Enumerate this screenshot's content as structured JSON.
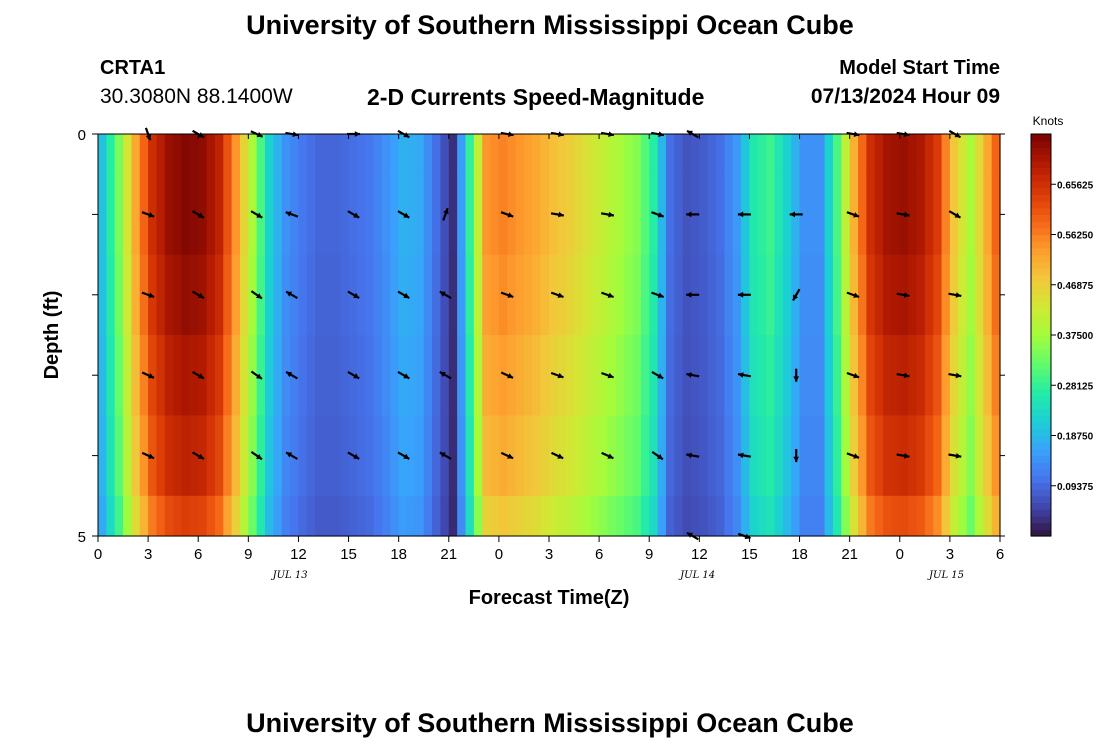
{
  "header": {
    "title": "University of Southern Mississippi Ocean Cube",
    "station_id": "CRTA1",
    "station_coords": "30.3080N  88.1400W",
    "model_start_label": "Model Start Time",
    "model_start_value": "07/13/2024 Hour 09"
  },
  "footer": {
    "title": "University of Southern Mississippi Ocean Cube"
  },
  "colors": {
    "colormap": [
      "#30123b",
      "#4145ab",
      "#4675ed",
      "#39a2fc",
      "#1bcfd4",
      "#24eca6",
      "#61fc6c",
      "#a4fc3b",
      "#d1e834",
      "#f3c63a",
      "#fe9b2d",
      "#f36315",
      "#d93806",
      "#b11901",
      "#7a0402"
    ]
  },
  "chart_data": {
    "type": "heatmap",
    "title": "2-D Currents Speed-Magnitude",
    "xlabel": "Forecast Time(Z)",
    "ylabel": "Depth (ft)",
    "xlim": [
      0,
      54
    ],
    "ylim": [
      0,
      5
    ],
    "x_tick_labels": [
      "0",
      "3",
      "6",
      "9",
      "12",
      "15",
      "18",
      "21",
      "0",
      "3",
      "6",
      "9",
      "12",
      "15",
      "18",
      "21",
      "0",
      "3",
      "6"
    ],
    "y_tick_labels": [
      "0",
      "5"
    ],
    "date_labels": [
      {
        "text": "JUL 13",
        "at_hour": 11.5
      },
      {
        "text": "JUL 14",
        "at_hour": 35.9
      },
      {
        "text": "JUL 15",
        "at_hour": 50.8
      }
    ],
    "colorbar": {
      "label": "Knots",
      "min": 0,
      "max": 0.75,
      "tick_values": [
        0.65625,
        0.5625,
        0.46875,
        0.375,
        0.28125,
        0.1875,
        0.09375
      ],
      "tick_labels": [
        "0.65625",
        "0.56250",
        "0.46875",
        "0.37500",
        "0.28125",
        "0.18750",
        "0.09375"
      ]
    },
    "depth_bins": [
      0,
      0.5,
      1.5,
      2.5,
      3.5,
      4.5,
      5
    ],
    "speed_by_hour_knots": [
      0.2,
      0.34,
      0.52,
      0.66,
      0.72,
      0.74,
      0.73,
      0.68,
      0.54,
      0.38,
      0.22,
      0.14,
      0.11,
      0.09,
      0.09,
      0.1,
      0.11,
      0.14,
      0.18,
      0.17,
      0.1,
      0.03,
      0.28,
      0.54,
      0.56,
      0.54,
      0.52,
      0.49,
      0.47,
      0.44,
      0.41,
      0.38,
      0.35,
      0.27,
      0.1,
      0.07,
      0.08,
      0.1,
      0.15,
      0.26,
      0.29,
      0.22,
      0.14,
      0.14,
      0.3,
      0.51,
      0.66,
      0.71,
      0.72,
      0.7,
      0.64,
      0.48,
      0.38,
      0.52,
      0.66
    ],
    "depth_factors": [
      1.0,
      1.0,
      0.98,
      0.95,
      0.92,
      0.86
    ],
    "vector_depths_ft": [
      0,
      1,
      2,
      3,
      4,
      5
    ],
    "vectors": [
      {
        "hour": 3,
        "dirs": [
          160,
          110,
          110,
          115,
          115,
          null
        ]
      },
      {
        "hour": 6,
        "dirs": [
          120,
          120,
          120,
          120,
          120,
          null
        ]
      },
      {
        "hour": 9.5,
        "dirs": [
          115,
          120,
          125,
          125,
          125,
          null
        ]
      },
      {
        "hour": 11.6,
        "dirs": [
          100,
          290,
          300,
          300,
          300,
          null
        ]
      },
      {
        "hour": 15.3,
        "dirs": [
          90,
          120,
          120,
          120,
          120,
          null
        ]
      },
      {
        "hour": 18.3,
        "dirs": [
          120,
          120,
          120,
          120,
          120,
          null
        ]
      },
      {
        "hour": 20.8,
        "dirs": [
          null,
          20,
          300,
          300,
          300,
          null
        ]
      },
      {
        "hour": 24.5,
        "dirs": [
          100,
          110,
          110,
          115,
          115,
          null
        ]
      },
      {
        "hour": 27.5,
        "dirs": [
          100,
          100,
          110,
          110,
          115,
          null
        ]
      },
      {
        "hour": 30.5,
        "dirs": [
          100,
          100,
          110,
          110,
          115,
          null
        ]
      },
      {
        "hour": 33.5,
        "dirs": [
          100,
          110,
          110,
          120,
          125,
          null
        ]
      },
      {
        "hour": 35.6,
        "dirs": [
          300,
          270,
          270,
          280,
          280,
          300
        ]
      },
      {
        "hour": 38.7,
        "dirs": [
          null,
          270,
          270,
          280,
          280,
          110
        ]
      },
      {
        "hour": 41.8,
        "dirs": [
          null,
          270,
          210,
          180,
          180,
          null
        ]
      },
      {
        "hour": 45.2,
        "dirs": [
          100,
          110,
          110,
          110,
          110,
          null
        ]
      },
      {
        "hour": 48.2,
        "dirs": [
          100,
          100,
          100,
          100,
          100,
          null
        ]
      },
      {
        "hour": 51.3,
        "dirs": [
          120,
          120,
          100,
          100,
          100,
          null
        ]
      }
    ]
  }
}
